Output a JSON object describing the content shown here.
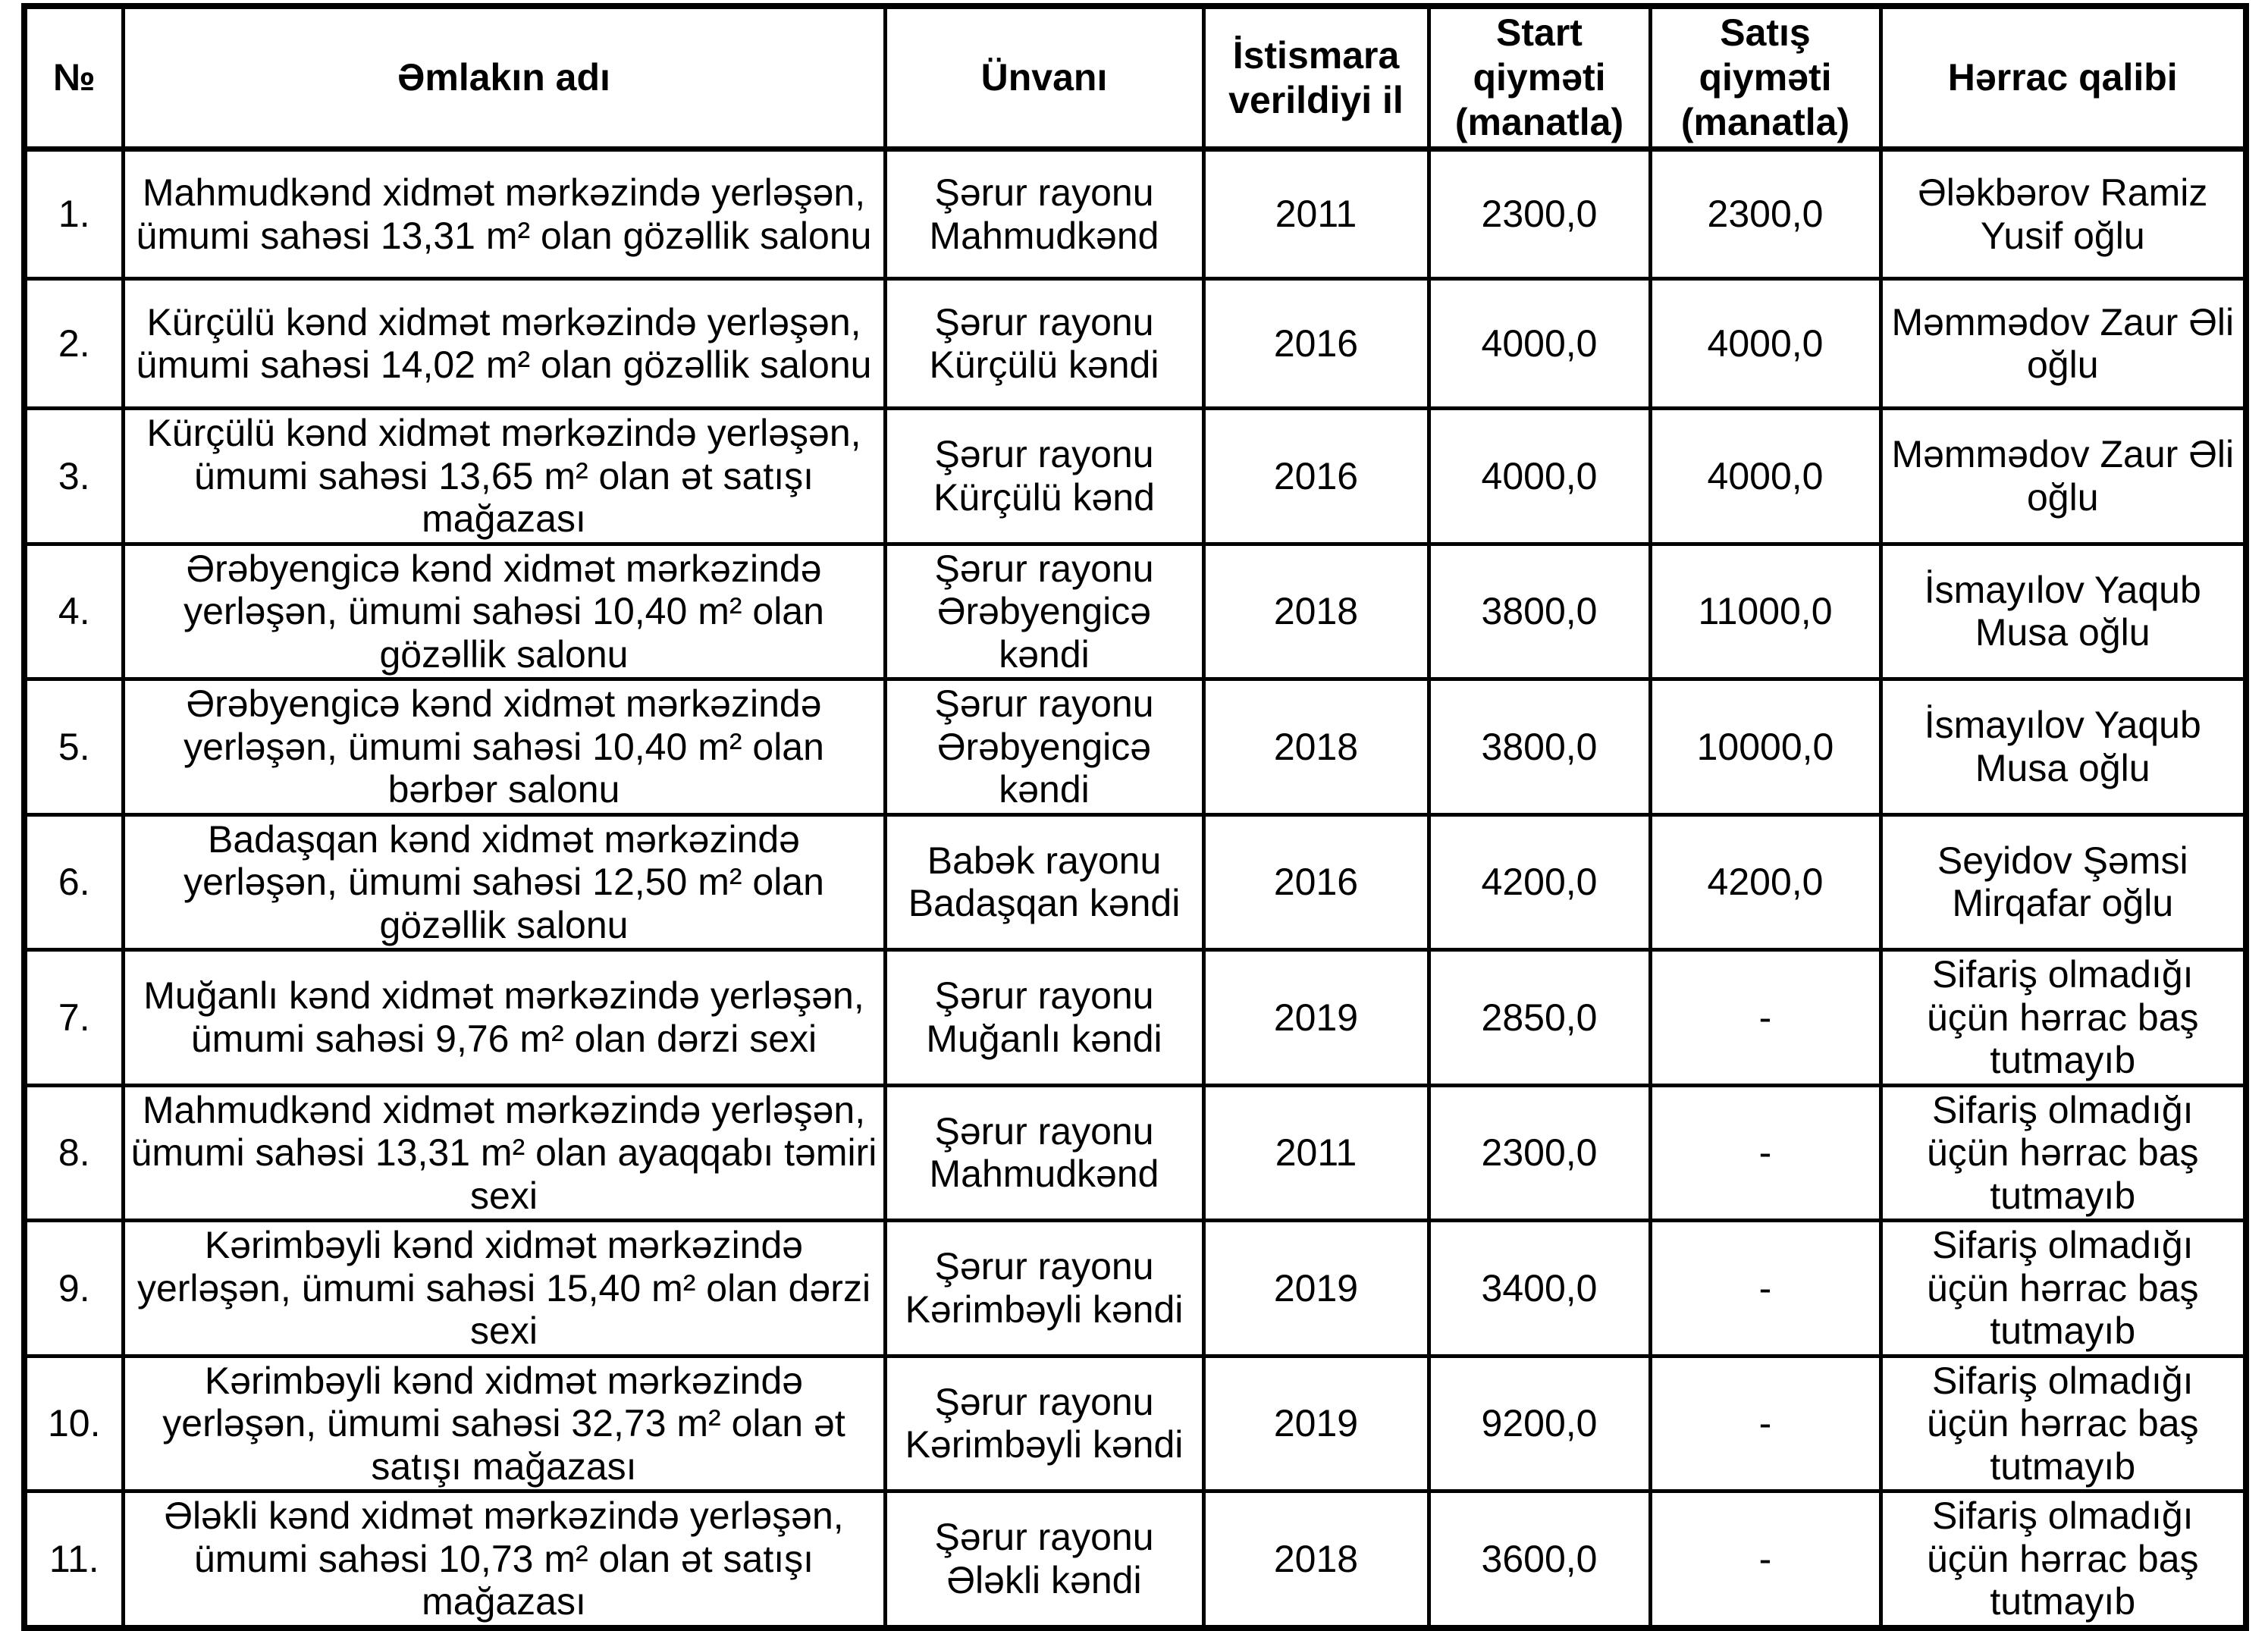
{
  "table": {
    "columns": [
      {
        "key": "no",
        "label": "№"
      },
      {
        "key": "name",
        "label": "Əmlakın adı"
      },
      {
        "key": "address",
        "label": "Ünvanı"
      },
      {
        "key": "year",
        "label": "İstismara verildiyi il"
      },
      {
        "key": "start_price",
        "label": "Start qiyməti (manatla)"
      },
      {
        "key": "sale_price",
        "label": "Satış qiyməti (manatla)"
      },
      {
        "key": "winner",
        "label": "Hərrac qalibi"
      }
    ],
    "rows": [
      {
        "no": "1.",
        "name": "Mahmudkənd xidmət mərkəzində yerləşən, ümumi sahəsi 13,31 m² olan gözəllik salonu",
        "address": "Şərur rayonu Mahmudkənd",
        "year": "2011",
        "start_price": "2300,0",
        "sale_price": "2300,0",
        "winner": "Ələkbərov Ramiz Yusif oğlu"
      },
      {
        "no": "2.",
        "name": "Kürçülü kənd xidmət mərkəzində yerləşən, ümumi sahəsi 14,02 m² olan gözəllik salonu",
        "address": "Şərur rayonu Kürçülü kəndi",
        "year": "2016",
        "start_price": "4000,0",
        "sale_price": "4000,0",
        "winner": "Məmmədov Zaur Əli oğlu"
      },
      {
        "no": "3.",
        "name": "Kürçülü kənd xidmət mərkəzində yerləşən, ümumi sahəsi 13,65 m² olan ət satışı mağazası",
        "address": "Şərur rayonu Kürçülü kənd",
        "year": "2016",
        "start_price": "4000,0",
        "sale_price": "4000,0",
        "winner": "Məmmədov Zaur Əli oğlu"
      },
      {
        "no": "4.",
        "name": "Ərəbyengicə kənd xidmət mərkəzində yerləşən, ümumi sahəsi 10,40 m² olan gözəllik salonu",
        "address": "Şərur rayonu Ərəbyengicə kəndi",
        "year": "2018",
        "start_price": "3800,0",
        "sale_price": "11000,0",
        "winner": "İsmayılov Yaqub Musa oğlu"
      },
      {
        "no": "5.",
        "name": "Ərəbyengicə kənd xidmət mərkəzində yerləşən, ümumi sahəsi 10,40 m² olan bərbər salonu",
        "address": "Şərur rayonu Ərəbyengicə kəndi",
        "year": "2018",
        "start_price": "3800,0",
        "sale_price": "10000,0",
        "winner": "İsmayılov Yaqub Musa oğlu"
      },
      {
        "no": "6.",
        "name": "Badaşqan kənd xidmət mərkəzində yerləşən, ümumi sahəsi 12,50 m² olan gözəllik salonu",
        "address": "Babək rayonu Badaşqan kəndi",
        "year": "2016",
        "start_price": "4200,0",
        "sale_price": "4200,0",
        "winner": "Seyidov Şəmsi Mirqafar oğlu"
      },
      {
        "no": "7.",
        "name": "Muğanlı kənd xidmət mərkəzində yerləşən, ümumi sahəsi 9,76 m² olan dərzi sexi",
        "address": "Şərur rayonu Muğanlı kəndi",
        "year": "2019",
        "start_price": "2850,0",
        "sale_price": "-",
        "winner": "Sifariş olmadığı üçün hərrac baş tutmayıb"
      },
      {
        "no": "8.",
        "name": "Mahmudkənd xidmət mərkəzində yerləşən, ümumi sahəsi 13,31 m² olan ayaqqabı təmiri sexi",
        "address": "Şərur rayonu Mahmudkənd",
        "year": "2011",
        "start_price": "2300,0",
        "sale_price": "-",
        "winner": "Sifariş olmadığı üçün hərrac baş tutmayıb"
      },
      {
        "no": "9.",
        "name": "Kərimbəyli kənd xidmət mərkəzində yerləşən, ümumi sahəsi 15,40 m² olan dərzi sexi",
        "address": "Şərur rayonu Kərimbəyli kəndi",
        "year": "2019",
        "start_price": "3400,0",
        "sale_price": "-",
        "winner": "Sifariş olmadığı üçün hərrac baş tutmayıb"
      },
      {
        "no": "10.",
        "name": "Kərimbəyli kənd xidmət mərkəzində yerləşən, ümumi sahəsi 32,73 m² olan ət satışı mağazası",
        "address": "Şərur rayonu Kərimbəyli kəndi",
        "year": "2019",
        "start_price": "9200,0",
        "sale_price": "-",
        "winner": "Sifariş olmadığı üçün hərrac baş tutmayıb"
      },
      {
        "no": "11.",
        "name": "Ələkli kənd xidmət mərkəzində yerləşən, ümumi sahəsi 10,73 m² olan ət satışı mağazası",
        "address": "Şərur rayonu Ələkli kəndi",
        "year": "2018",
        "start_price": "3600,0",
        "sale_price": "-",
        "winner": "Sifariş olmadığı üçün hərrac baş tutmayıb"
      }
    ]
  }
}
